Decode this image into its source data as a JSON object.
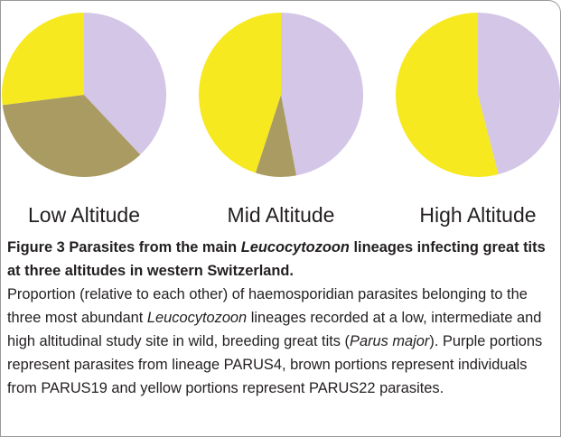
{
  "chart_data": [
    {
      "type": "pie",
      "title": "Low Altitude",
      "values": [
        38,
        35,
        27
      ],
      "colors": [
        "#d3c6e6",
        "#aa9b63",
        "#f6e91f"
      ]
    },
    {
      "type": "pie",
      "title": "Mid Altitude",
      "values": [
        47,
        8,
        45
      ],
      "colors": [
        "#d3c6e6",
        "#aa9b63",
        "#f6e91f"
      ]
    },
    {
      "type": "pie",
      "title": "High Altitude",
      "values": [
        46,
        54
      ],
      "colors": [
        "#d3c6e6",
        "#f6e91f"
      ]
    }
  ],
  "caption": {
    "label": "Figure 3",
    "title_runs": [
      "Parasites from the main ",
      "Leucocytozoon",
      " lineages infecting great tits at three altitudes in western Switzerland."
    ],
    "body_runs": [
      "Proportion (relative to each other) of haemosporidian parasites belonging to the three most abundant ",
      "Leucocytozoon",
      " lineages recorded at a low, intermediate and high altitudinal study site in wild, breeding great tits (",
      "Parus major",
      "). Purple portions represent parasites from lineage PARUS4, brown portions represent individuals from PARUS19 and yellow portions represent PARUS22 parasites."
    ]
  }
}
